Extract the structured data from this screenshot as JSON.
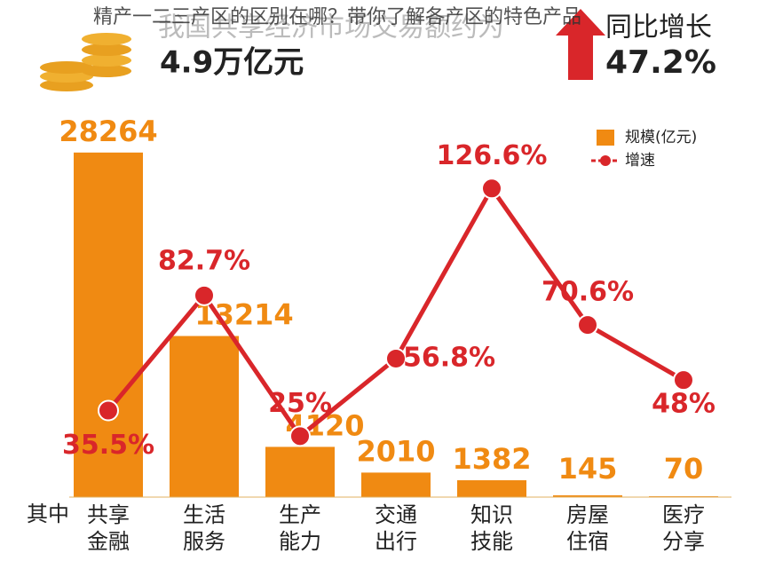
{
  "watermark": "精产一二三产区的区别在哪？带你了解各产区的特色产品",
  "header": {
    "subtitle": "我国共享经济市场交易额约为",
    "total": "4.9万亿元",
    "growth_label": "同比增长",
    "growth": "47.2%"
  },
  "chart_data": {
    "type": "bar_line",
    "row_label": "其中",
    "categories": [
      "共享\n金融",
      "生活\n服务",
      "生产\n能力",
      "交通\n出行",
      "知识\n技能",
      "房屋\n住宿",
      "医疗\n分享"
    ],
    "series": [
      {
        "name": "规模(亿元)",
        "type": "bar",
        "color": "#f08a12",
        "values": [
          28264,
          13214,
          4120,
          2010,
          1382,
          145,
          70
        ]
      },
      {
        "name": "增速",
        "type": "line",
        "axis": "y2",
        "color": "#d9262a",
        "values": [
          35.5,
          82.7,
          25,
          56.8,
          126.6,
          70.6,
          48
        ],
        "value_labels": [
          "35.5%",
          "82.7%",
          "25%",
          "56.8%",
          "126.6%",
          "70.6%",
          "48%"
        ]
      }
    ],
    "ylim": [
      0,
      30000
    ],
    "y2lim": [
      0,
      150
    ],
    "legend": "top-right"
  }
}
